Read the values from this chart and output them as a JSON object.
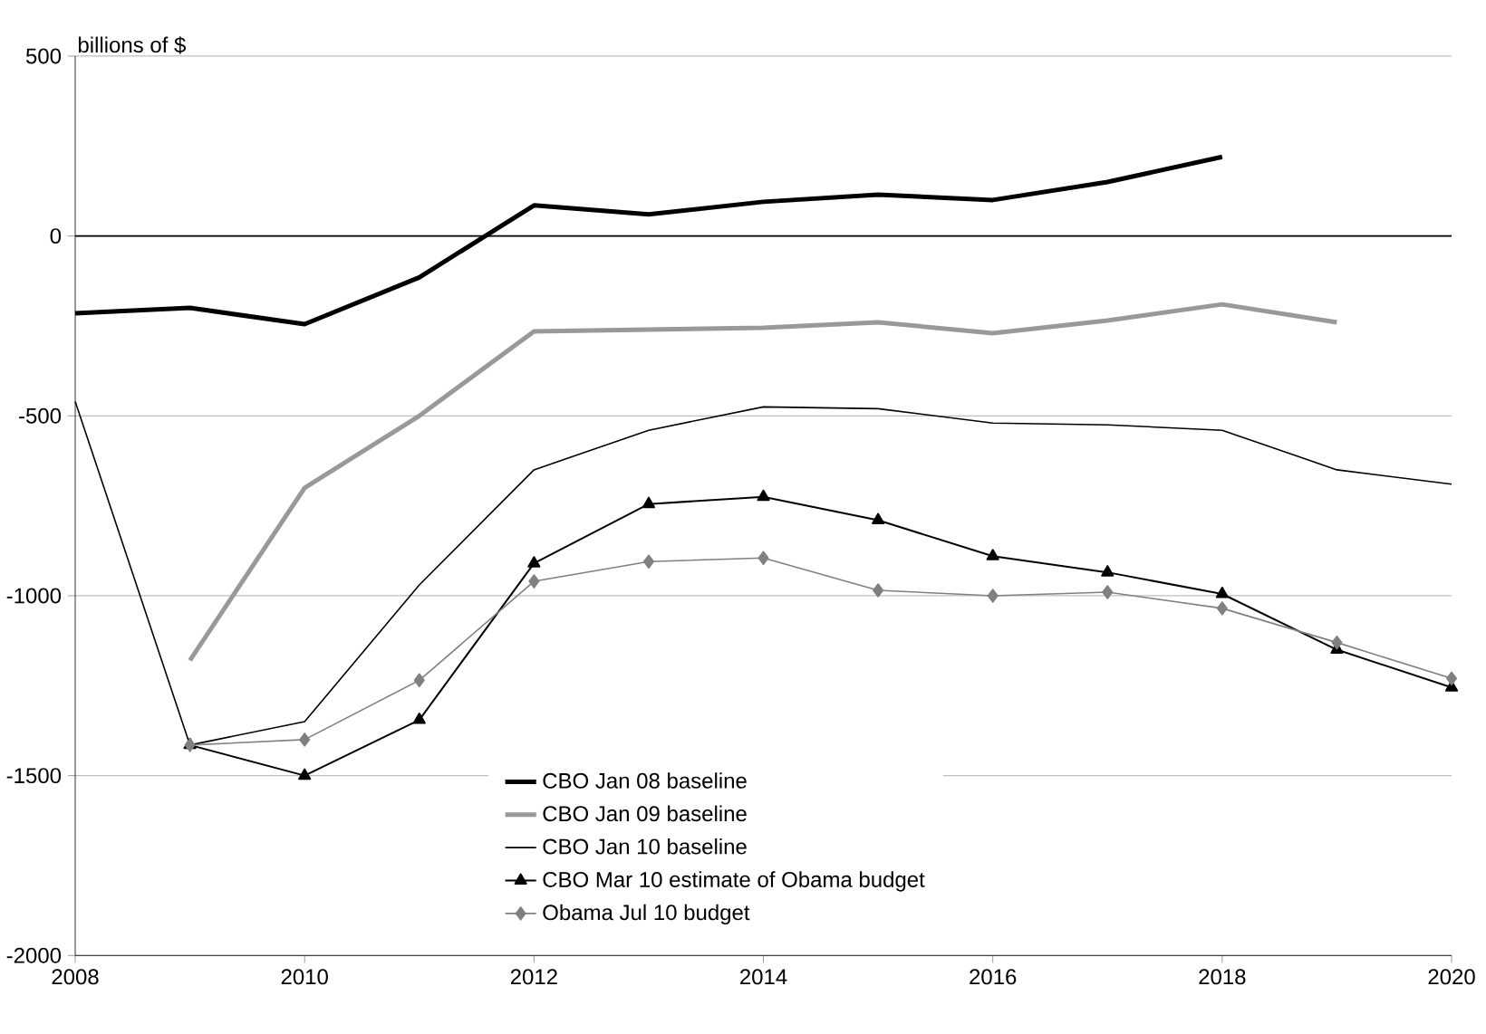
{
  "chart_data": {
    "type": "line",
    "ylabel": "billions of $",
    "x": [
      2008,
      2009,
      2010,
      2011,
      2012,
      2013,
      2014,
      2015,
      2016,
      2017,
      2018,
      2019,
      2020
    ],
    "series": [
      {
        "name": "CBO Jan 08 baseline",
        "color": "#000000",
        "values": [
          -215,
          -200,
          -245,
          -115,
          85,
          60,
          95,
          115,
          100,
          150,
          220,
          null,
          null
        ]
      },
      {
        "name": "CBO Jan 09 baseline",
        "color": "#999999",
        "values": [
          null,
          -1180,
          -700,
          -500,
          -265,
          -260,
          -255,
          -240,
          -270,
          -235,
          -190,
          -240,
          null
        ]
      },
      {
        "name": "CBO Jan 10 baseline",
        "color": "#000000",
        "values": [
          -460,
          -1415,
          -1350,
          -970,
          -650,
          -540,
          -475,
          -480,
          -520,
          -525,
          -540,
          -650,
          -690
        ]
      },
      {
        "name": "CBO Mar 10 estimate of Obama budget",
        "color": "#000000",
        "marker": "triangle",
        "values": [
          null,
          -1415,
          -1500,
          -1345,
          -910,
          -745,
          -725,
          -790,
          -890,
          -935,
          -995,
          -1150,
          -1255
        ]
      },
      {
        "name": "Obama Jul 10 budget",
        "color": "#808080",
        "marker": "diamond",
        "values": [
          null,
          -1415,
          -1400,
          -1235,
          -960,
          -905,
          -895,
          -985,
          -1000,
          -990,
          -1035,
          -1130,
          -1230
        ]
      }
    ],
    "xlim": [
      2008,
      2020
    ],
    "xticks": [
      2008,
      2010,
      2012,
      2014,
      2016,
      2018,
      2020
    ],
    "ylim": [
      -2000,
      500
    ],
    "yticks": [
      -2000,
      -1500,
      -1000,
      -500,
      0,
      500
    ],
    "ref_lines": [
      {
        "axis": "y",
        "value": 0,
        "color": "#000000"
      }
    ],
    "grid": "y",
    "legend": "bottom"
  }
}
